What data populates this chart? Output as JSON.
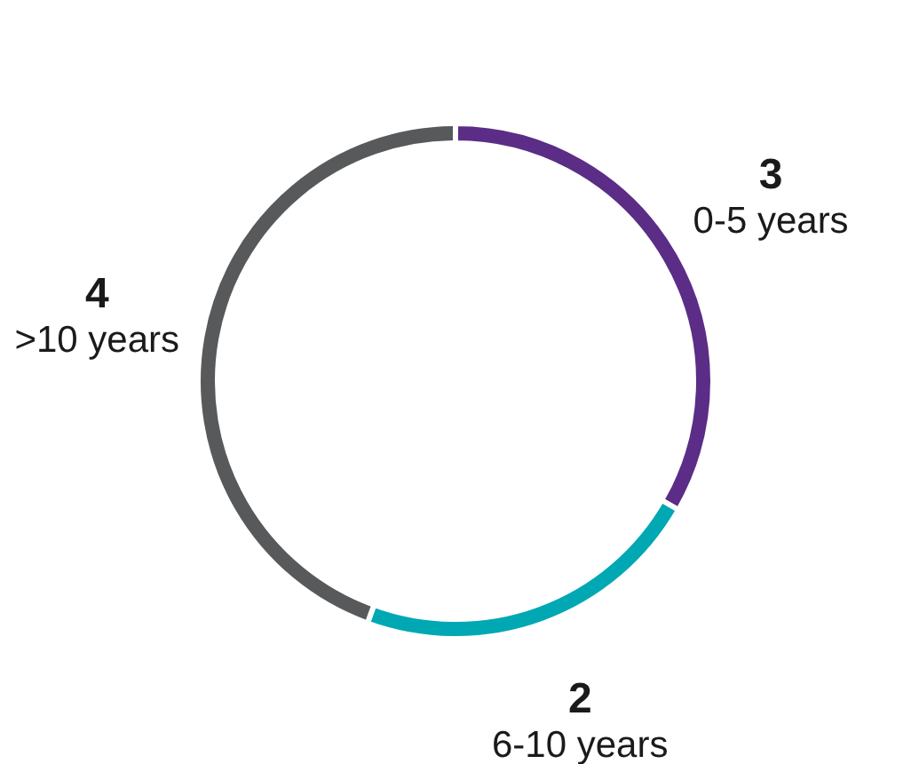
{
  "chart_data": {
    "type": "donut",
    "categories": [
      "0-5 years",
      "6-10 years",
      ">10 years"
    ],
    "values": [
      3,
      2,
      4
    ],
    "colors": [
      "#5b2d86",
      "#00a8b4",
      "#58595b"
    ],
    "data_labels": true,
    "legend": false
  }
}
